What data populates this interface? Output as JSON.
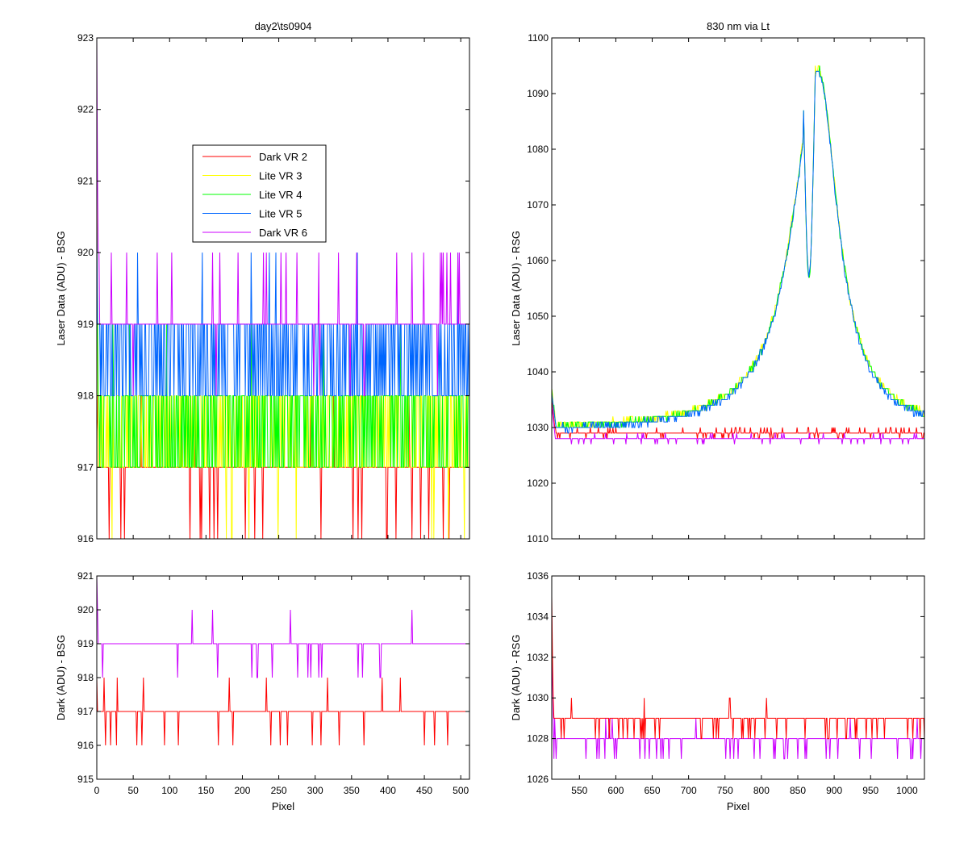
{
  "chart_data": [
    {
      "id": "tl",
      "type": "line",
      "title": "day2\\ts0904",
      "xlabel": "",
      "ylabel": "Laser Data (ADU) - BSG",
      "xlim": [
        0,
        512
      ],
      "ylim": [
        916,
        923
      ],
      "xticks": [
        0,
        50,
        100,
        150,
        200,
        250,
        300,
        350,
        400,
        450,
        500
      ],
      "yticks": [
        916,
        917,
        918,
        919,
        920,
        921,
        922,
        923
      ],
      "show_xtick_labels": false,
      "legend": {
        "position": "upper-center",
        "entries": [
          {
            "label": "Dark VR 2",
            "color": "#ff0000"
          },
          {
            "label": "Lite VR 3",
            "color": "#ffff00"
          },
          {
            "label": "Lite VR 4",
            "color": "#00ff00"
          },
          {
            "label": "Lite VR 5",
            "color": "#0066ff"
          },
          {
            "label": "Dark VR 6",
            "color": "#cc00ff"
          }
        ]
      },
      "series": [
        {
          "name": "Dark VR 2",
          "color": "#ff0000",
          "base": 917,
          "alt": 916,
          "noise": 0.04,
          "start": [
            917.5,
            918
          ],
          "seed": 11
        },
        {
          "name": "Lite VR 3",
          "color": "#ffff00",
          "base": 917,
          "alt": 918,
          "noise": 0.45,
          "start": [
            921,
            919
          ],
          "seed": 23
        },
        {
          "name": "Lite VR 4",
          "color": "#00ff00",
          "base": 918,
          "alt": 917,
          "noise": 0.45,
          "start": [
            920,
            919
          ],
          "seed": 37
        },
        {
          "name": "Lite VR 5",
          "color": "#0066ff",
          "base": 919,
          "alt": 918,
          "noise": 0.5,
          "start": [
            920.5,
            919
          ],
          "seed": 41
        },
        {
          "name": "Dark VR 6",
          "color": "#cc00ff",
          "base": 919,
          "alt": 920,
          "noise": 0.04,
          "start": [
            923,
            921,
            920
          ],
          "seed": 53
        }
      ]
    },
    {
      "id": "tr",
      "type": "line",
      "title": "830 nm via Lt",
      "xlabel": "",
      "ylabel": "Laser Data (ADU) - RSG",
      "xlim": [
        512,
        1024
      ],
      "ylim": [
        1010,
        1100
      ],
      "xticks": [
        550,
        600,
        650,
        700,
        750,
        800,
        850,
        900,
        950,
        1000
      ],
      "yticks": [
        1010,
        1020,
        1030,
        1040,
        1050,
        1060,
        1070,
        1080,
        1090,
        1100
      ],
      "show_xtick_labels": false,
      "series": [
        {
          "name": "Dark VR 2",
          "color": "#ff0000",
          "kind": "dark",
          "base": 1029,
          "noise": 0.15,
          "seed": 5
        },
        {
          "name": "Dark VR 6",
          "color": "#cc00ff",
          "kind": "dark",
          "base": 1028,
          "noise": 0.1,
          "seed": 9
        },
        {
          "name": "Lite VR 3",
          "color": "#ffff00",
          "kind": "lite",
          "offset": 0.6,
          "seed": 13
        },
        {
          "name": "Lite VR 4",
          "color": "#00ff00",
          "kind": "lite",
          "offset": 0.4,
          "seed": 17
        },
        {
          "name": "Lite VR 5",
          "color": "#0066ff",
          "kind": "lite",
          "offset": 0.0,
          "seed": 19
        }
      ],
      "peak": {
        "x": 878,
        "y": 1094,
        "baseline": 1029,
        "gap": [
          858,
          873
        ]
      }
    },
    {
      "id": "bl",
      "type": "line",
      "title": "",
      "xlabel": "Pixel",
      "ylabel": "Dark (ADU) - BSG",
      "xlim": [
        0,
        512
      ],
      "ylim": [
        915,
        921
      ],
      "xticks": [
        0,
        50,
        100,
        150,
        200,
        250,
        300,
        350,
        400,
        450,
        500
      ],
      "yticks": [
        915,
        916,
        917,
        918,
        919,
        920,
        921
      ],
      "show_xtick_labels": true,
      "series": [
        {
          "name": "Dark VR 6",
          "color": "#cc00ff",
          "base": 919,
          "alt": 918,
          "noise": 0.05,
          "start": [
            921,
            920
          ],
          "seed": 61
        },
        {
          "name": "Dark VR 2",
          "color": "#ff0000",
          "base": 917,
          "alt": 916,
          "noise": 0.04,
          "start": [
            918,
            917
          ],
          "seed": 67
        }
      ]
    },
    {
      "id": "br",
      "type": "line",
      "title": "",
      "xlabel": "Pixel",
      "ylabel": "Dark (ADU) - RSG",
      "xlim": [
        512,
        1024
      ],
      "ylim": [
        1026,
        1036
      ],
      "xticks": [
        550,
        600,
        650,
        700,
        750,
        800,
        850,
        900,
        950,
        1000
      ],
      "yticks": [
        1026,
        1028,
        1030,
        1032,
        1034,
        1036
      ],
      "show_xtick_labels": true,
      "series": [
        {
          "name": "Dark VR 6",
          "color": "#cc00ff",
          "base": 1028,
          "alt": 1027,
          "noise": 0.07,
          "start": [
            1034,
            1031,
            1029
          ],
          "seed": 71
        },
        {
          "name": "Dark VR 2",
          "color": "#ff0000",
          "base": 1029,
          "alt": 1028,
          "noise": 0.12,
          "start": [
            1035,
            1032,
            1030
          ],
          "seed": 73
        }
      ]
    }
  ]
}
